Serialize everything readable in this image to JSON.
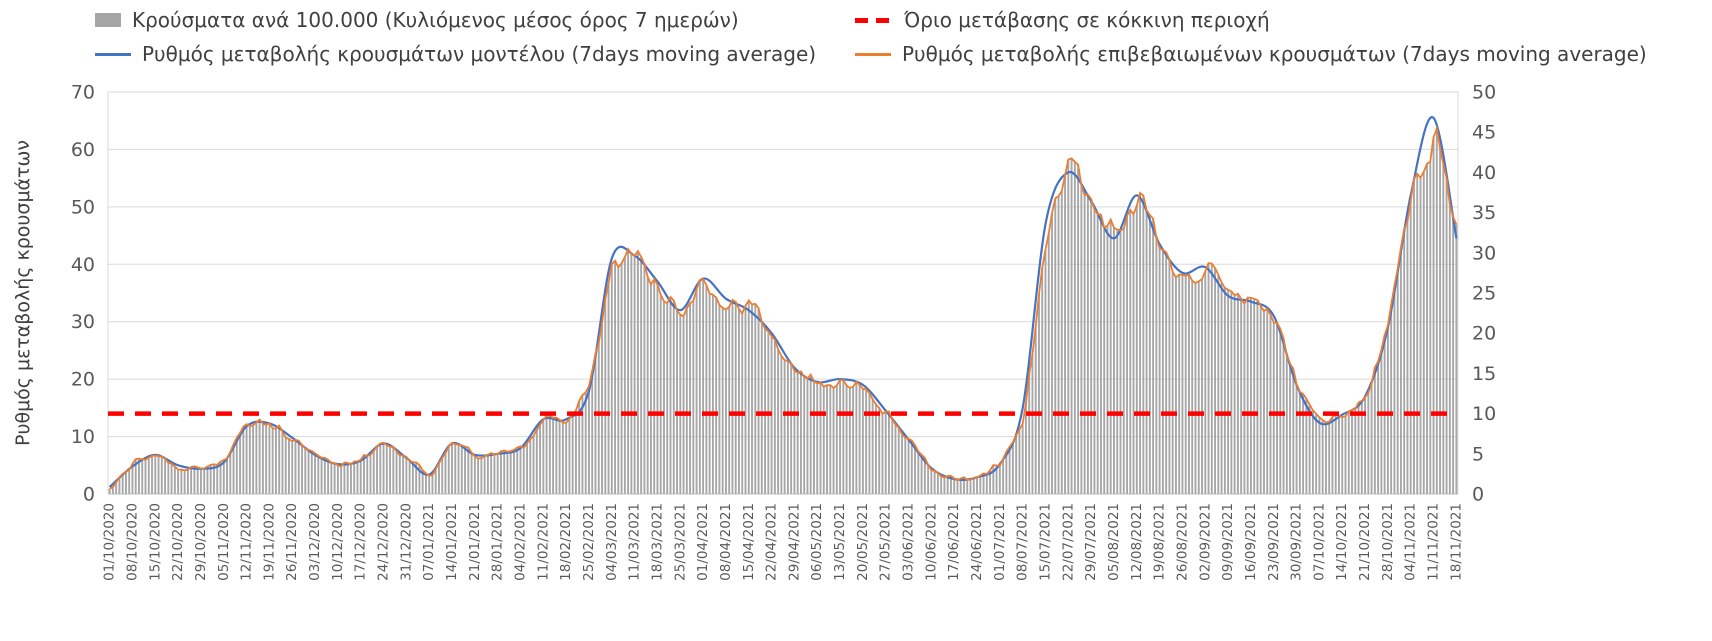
{
  "chart_data": {
    "type": "bar+line",
    "title": "",
    "legend_position": "top",
    "grid": true,
    "x_tick_rotation": 90,
    "categories": [
      "01/10/2020",
      "08/10/2020",
      "15/10/2020",
      "22/10/2020",
      "29/10/2020",
      "05/11/2020",
      "12/11/2020",
      "19/11/2020",
      "26/11/2020",
      "03/12/2020",
      "10/12/2020",
      "17/12/2020",
      "24/12/2020",
      "31/12/2020",
      "07/01/2021",
      "14/01/2021",
      "21/01/2021",
      "28/01/2021",
      "04/02/2021",
      "11/02/2021",
      "18/02/2021",
      "25/02/2021",
      "04/03/2021",
      "11/03/2021",
      "18/03/2021",
      "25/03/2021",
      "01/04/2021",
      "08/04/2021",
      "15/04/2021",
      "22/04/2021",
      "29/04/2021",
      "06/05/2021",
      "13/05/2021",
      "20/05/2021",
      "27/05/2021",
      "03/06/2021",
      "10/06/2021",
      "17/06/2021",
      "24/06/2021",
      "01/07/2021",
      "08/07/2021",
      "15/07/2021",
      "22/07/2021",
      "29/07/2021",
      "05/08/2021",
      "12/08/2021",
      "19/08/2021",
      "26/08/2021",
      "02/09/2021",
      "09/09/2021",
      "16/09/2021",
      "23/09/2021",
      "30/09/2021",
      "07/10/2021",
      "14/10/2021",
      "21/10/2021",
      "28/10/2021",
      "04/11/2021",
      "11/11/2021",
      "18/11/2021"
    ],
    "series": [
      {
        "name": "Κρούσματα ανά 100.000 (Κυλιόμενος μέσος όρος 7 ημερών)",
        "type": "bar",
        "axis": "right",
        "color": "#a6a6a6",
        "values": [
          0.7,
          3.9,
          5,
          3.2,
          3.2,
          4.3,
          8.9,
          8.6,
          6.8,
          4.6,
          3.6,
          4.3,
          6.4,
          4.3,
          2.1,
          6.8,
          4.6,
          5,
          5.7,
          9.6,
          9.3,
          13.6,
          29.3,
          29.3,
          25.7,
          22.1,
          27.1,
          23.6,
          23.6,
          19.3,
          15.7,
          13.6,
          14.3,
          13.2,
          10,
          6.4,
          2.9,
          1.8,
          2.1,
          3.9,
          9.3,
          32.1,
          41.4,
          35.7,
          32.1,
          37.9,
          30,
          26.8,
          28.2,
          23.9,
          24.3,
          21.8,
          13.2,
          8.9,
          10,
          11.8,
          21.4,
          37.9,
          44.3,
          31.4
        ]
      },
      {
        "name": "Ρυθμός μεταβολής κρουσμάτων μοντέλου (7days moving average)",
        "type": "line",
        "axis": "left",
        "color": "#4472c4",
        "values": [
          1.2,
          4.8,
          6.8,
          5,
          4.4,
          5.5,
          11.8,
          12.3,
          9.8,
          6.8,
          5.2,
          5.8,
          8.8,
          6.3,
          3.4,
          8.8,
          6.8,
          7,
          8,
          13,
          13,
          18,
          41,
          41.5,
          37,
          32,
          37.5,
          34,
          32,
          28,
          22,
          19.5,
          20,
          19,
          14.5,
          9.5,
          4.5,
          2.6,
          2.9,
          5.2,
          15,
          47,
          56,
          51,
          44.5,
          52,
          43.5,
          38.5,
          39.5,
          34.5,
          33.5,
          31,
          19,
          12.4,
          13.8,
          17,
          29,
          52,
          65.5,
          44.5
        ]
      },
      {
        "name": "Ρυθμός μεταβολής επιβεβαιωμένων κρουσμάτων (7days moving average)",
        "type": "line",
        "axis": "left",
        "color": "#ed7d31",
        "values": [
          1,
          5.5,
          7,
          4.5,
          4.5,
          6,
          12.5,
          12,
          9.5,
          6.5,
          5,
          6,
          9,
          6,
          3,
          9.5,
          6.5,
          7,
          8,
          13.5,
          13,
          19,
          41,
          41,
          36,
          31,
          38,
          33,
          33,
          27,
          22,
          19,
          20,
          18.5,
          14,
          9,
          4,
          2.5,
          3,
          5.5,
          13,
          45,
          58,
          50,
          45,
          53,
          42,
          37.5,
          39.5,
          33.5,
          34,
          30.5,
          18.5,
          12.5,
          14,
          16.5,
          30,
          53,
          62,
          44
        ]
      }
    ],
    "threshold": {
      "label": "Όριο μετάβασης σε κόκκινη περιοχή",
      "value": 14,
      "axis": "left",
      "color": "#ff0000"
    },
    "left_axis": {
      "label": "Ρυθμός μεταβολής κρουσμάτων",
      "min": 0,
      "max": 70,
      "step": 10,
      "ticks": [
        0,
        10,
        20,
        30,
        40,
        50,
        60,
        70
      ]
    },
    "right_axis": {
      "label": "",
      "min": 0,
      "max": 50,
      "step": 5,
      "ticks": [
        0,
        5,
        10,
        15,
        20,
        25,
        30,
        35,
        40,
        45,
        50
      ]
    }
  }
}
